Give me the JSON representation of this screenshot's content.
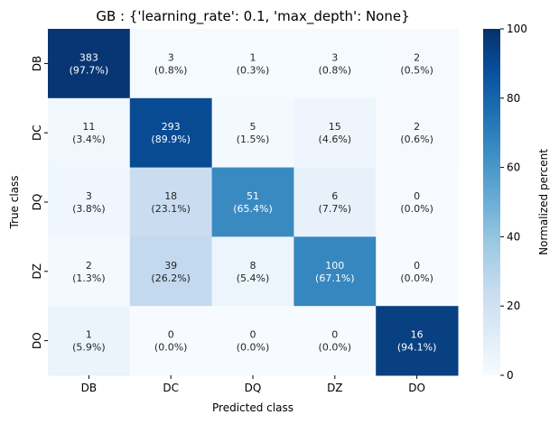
{
  "chart_data": {
    "type": "heatmap",
    "title": "GB : {'learning_rate': 0.1, 'max_depth': None}",
    "xlabel": "Predicted class",
    "ylabel": "True class",
    "x_categories": [
      "DB",
      "DC",
      "DQ",
      "DZ",
      "DO"
    ],
    "y_categories": [
      "DB",
      "DC",
      "DQ",
      "DZ",
      "DO"
    ],
    "counts": [
      [
        383,
        3,
        1,
        3,
        2
      ],
      [
        11,
        293,
        5,
        15,
        2
      ],
      [
        3,
        18,
        51,
        6,
        0
      ],
      [
        2,
        39,
        8,
        100,
        0
      ],
      [
        1,
        0,
        0,
        0,
        16
      ]
    ],
    "percent": [
      [
        97.7,
        0.8,
        0.3,
        0.8,
        0.5
      ],
      [
        3.4,
        89.9,
        1.5,
        4.6,
        0.6
      ],
      [
        3.8,
        23.1,
        65.4,
        7.7,
        0.0
      ],
      [
        1.3,
        26.2,
        5.4,
        67.1,
        0.0
      ],
      [
        5.9,
        0.0,
        0.0,
        0.0,
        94.1
      ]
    ],
    "colormap": "Blues",
    "colorbar": {
      "label": "Normalized percent",
      "range": [
        0,
        100
      ],
      "ticks": [
        0,
        20,
        40,
        60,
        80,
        100
      ]
    }
  }
}
